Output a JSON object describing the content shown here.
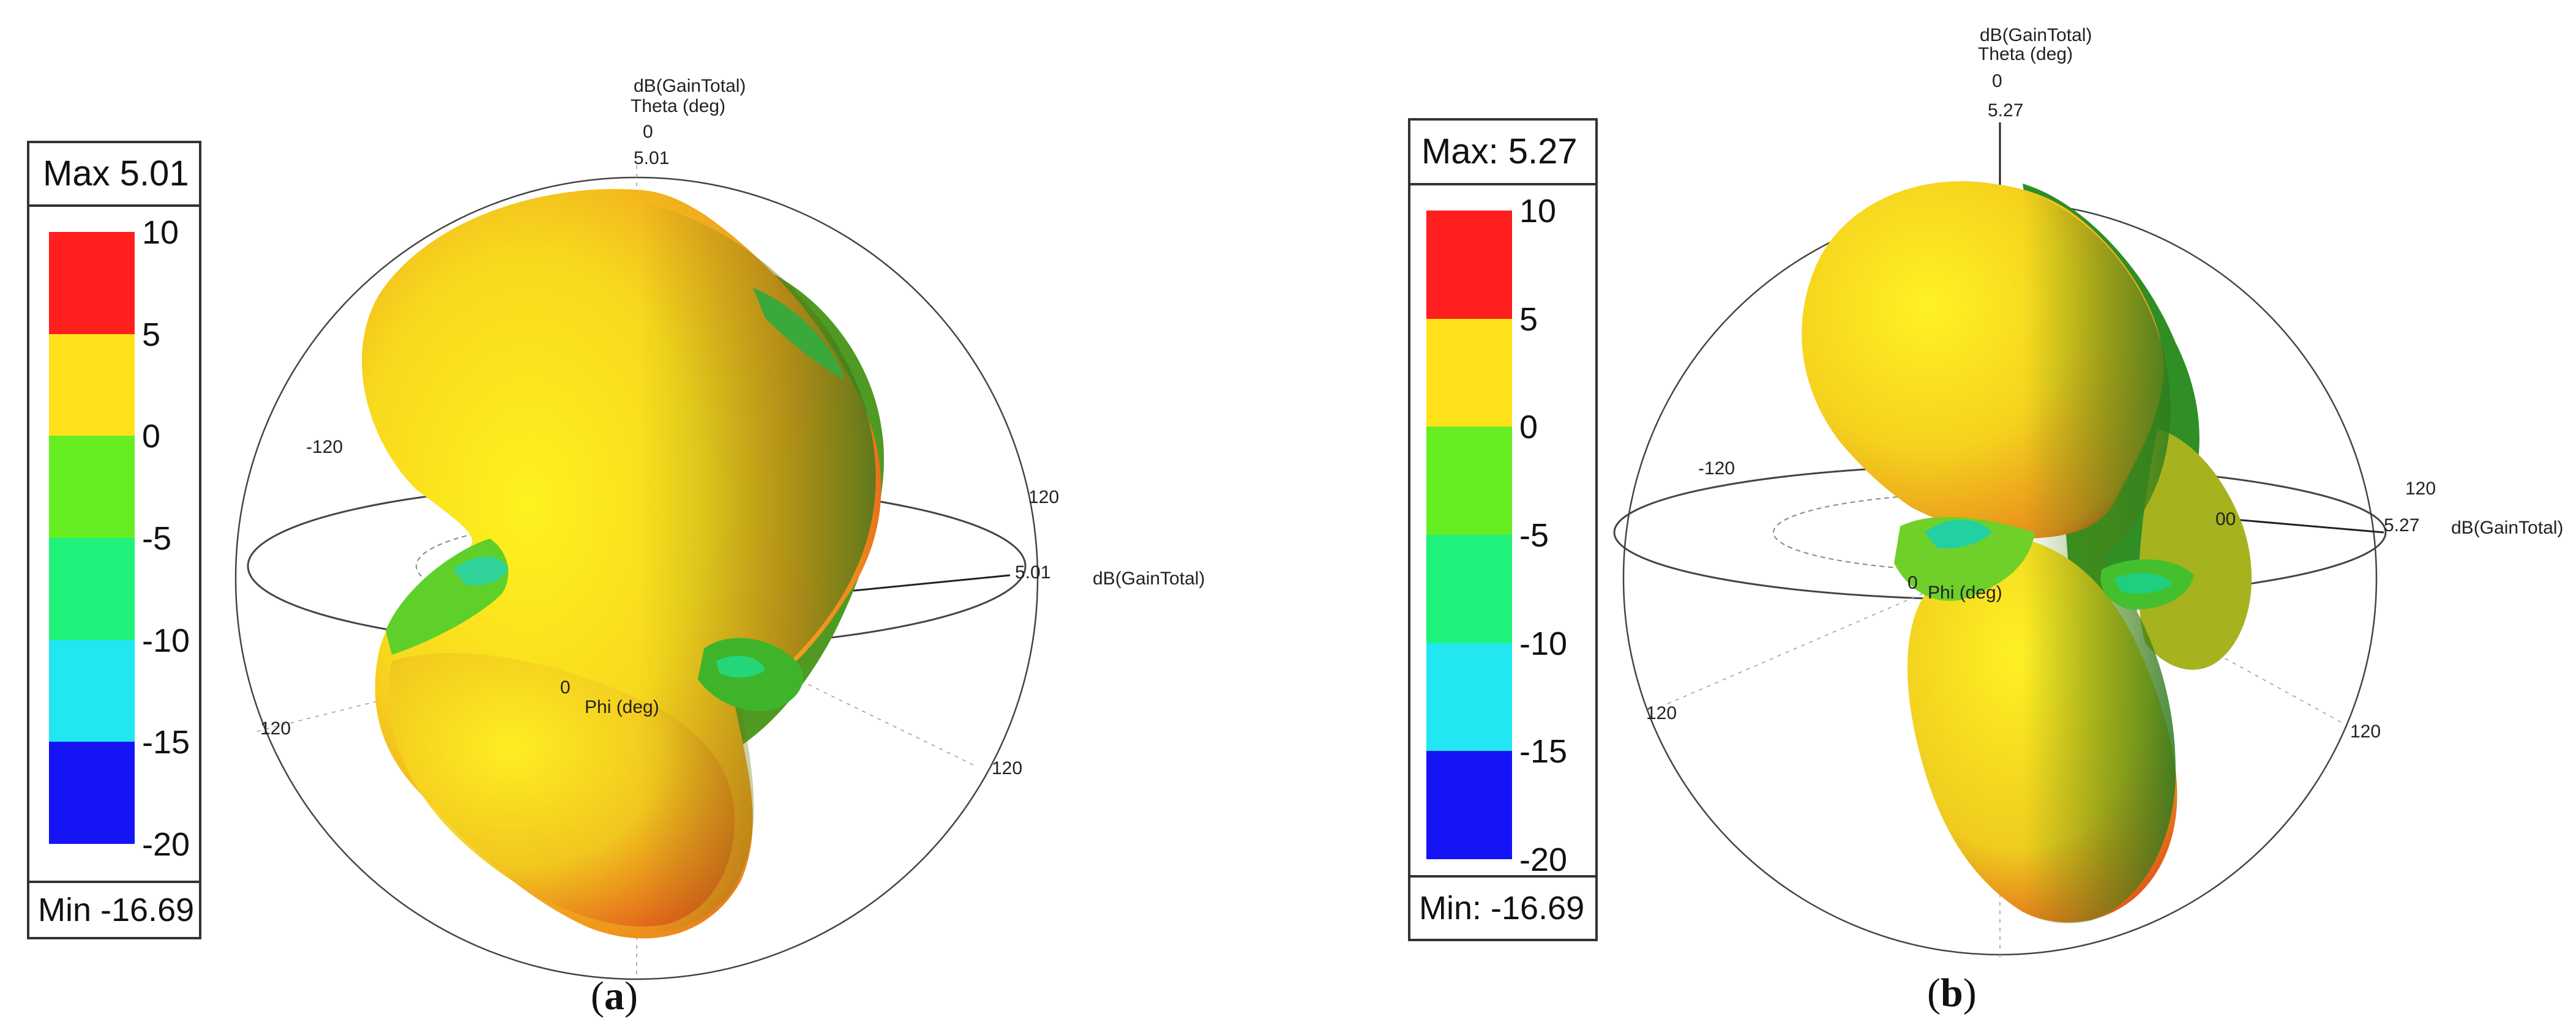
{
  "figure": {
    "panels": [
      {
        "id": "a",
        "caption_letter": "a",
        "legend": {
          "max_label": "Max 5.01",
          "min_label": "Min -16.69",
          "ticks": [
            "10",
            "5",
            "0",
            "-5",
            "-10",
            "-15",
            "-20"
          ]
        },
        "labels": {
          "title_line1": "dB(GainTotal)",
          "title_line2": "Theta (deg)",
          "theta_zero": "0",
          "max_value": "5.01",
          "phi_label": "Phi (deg)",
          "phi_zero": "0",
          "right_value": "5.01",
          "right_axis": "dB(GainTotal)",
          "t_left": "-120",
          "t_right": "120",
          "b_left": "120",
          "b_right": "120"
        }
      },
      {
        "id": "b",
        "caption_letter": "b",
        "legend": {
          "max_label": "Max: 5.27",
          "min_label": "Min: -16.69",
          "ticks": [
            "10",
            "5",
            "0",
            "-5",
            "-10",
            "-15",
            "-20"
          ]
        },
        "labels": {
          "title_line1": "dB(GainTotal)",
          "title_line2": "Theta (deg)",
          "theta_zero": "0",
          "max_value": "5.27",
          "phi_label": "Phi (deg)",
          "phi_zero": "0",
          "right_value": "5.27",
          "right_zero": "00",
          "right_axis": "dB(GainTotal)",
          "t_left": "-120",
          "t_right": "120",
          "b_left": "120",
          "b_right": "120"
        }
      }
    ]
  },
  "chart_data": [
    {
      "type": "heatmap",
      "title": "dB(GainTotal)",
      "quantity": "dB(GainTotal)",
      "axes": [
        "Theta (deg)",
        "Phi (deg)"
      ],
      "max": 5.01,
      "min": -16.69,
      "colorbar": {
        "ticks": [
          10,
          5,
          0,
          -5,
          -10,
          -15,
          -20
        ],
        "colors": [
          "#ff1f1f",
          "#ffe11a",
          "#66ee22",
          "#1ef27a",
          "#22e6f2",
          "#1414f5"
        ]
      }
    },
    {
      "type": "heatmap",
      "title": "dB(GainTotal)",
      "quantity": "dB(GainTotal)",
      "axes": [
        "Theta (deg)",
        "Phi (deg)"
      ],
      "max": 5.27,
      "min": -16.69,
      "colorbar": {
        "ticks": [
          10,
          5,
          0,
          -5,
          -10,
          -15,
          -20
        ],
        "colors": [
          "#ff1f1f",
          "#ffe11a",
          "#66ee22",
          "#1ef27a",
          "#22e6f2",
          "#1414f5"
        ]
      }
    }
  ]
}
